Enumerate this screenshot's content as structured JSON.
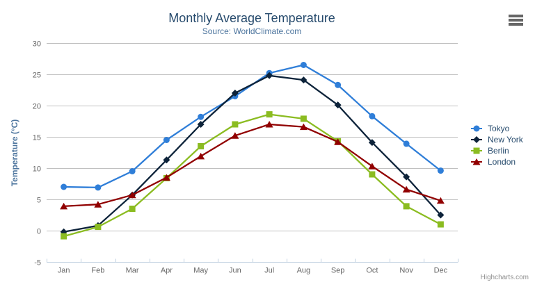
{
  "chart": {
    "title": "Monthly Average Temperature",
    "subtitle": "Source: WorldClimate.com",
    "credits": "Highcharts.com"
  },
  "colors": {
    "title": "#274b6d",
    "subtitle": "#4d759e",
    "axis_label": "#666666",
    "axis_title": "#4d759e",
    "grid_line": "#C0C0C0",
    "axis_line": "#C0D0E0",
    "tick": "#C0D0E0",
    "legend_text": "#274b6d",
    "credits_text": "#909090",
    "menu_icon": "#666666",
    "background": "#ffffff"
  },
  "chart_data": {
    "type": "line",
    "title": "Monthly Average Temperature",
    "subtitle": "Source: WorldClimate.com",
    "xlabel": "",
    "ylabel": "Temperature (°C)",
    "ylim": [
      -5,
      30
    ],
    "y_tick_interval": 5,
    "y_ticks": [
      30,
      25,
      20,
      15,
      10,
      5,
      0,
      -5
    ],
    "grid": "horizontal",
    "legend_position": "right",
    "categories": [
      "Jan",
      "Feb",
      "Mar",
      "Apr",
      "May",
      "Jun",
      "Jul",
      "Aug",
      "Sep",
      "Oct",
      "Nov",
      "Dec"
    ],
    "series": [
      {
        "name": "Tokyo",
        "color": "#2f7ed8",
        "marker": "circle",
        "values": [
          7.0,
          6.9,
          9.5,
          14.5,
          18.2,
          21.5,
          25.2,
          26.5,
          23.3,
          18.3,
          13.9,
          9.6
        ]
      },
      {
        "name": "New York",
        "color": "#0d233a",
        "marker": "diamond",
        "values": [
          -0.2,
          0.8,
          5.7,
          11.3,
          17.0,
          22.0,
          24.8,
          24.1,
          20.1,
          14.1,
          8.6,
          2.5
        ]
      },
      {
        "name": "Berlin",
        "color": "#8bbc21",
        "marker": "square",
        "values": [
          -0.9,
          0.6,
          3.5,
          8.4,
          13.5,
          17.0,
          18.6,
          17.9,
          14.3,
          9.0,
          3.9,
          1.0
        ]
      },
      {
        "name": "London",
        "color": "#910000",
        "marker": "triangle",
        "values": [
          3.9,
          4.2,
          5.7,
          8.5,
          11.9,
          15.2,
          17.0,
          16.6,
          14.2,
          10.3,
          6.6,
          4.8
        ]
      }
    ]
  }
}
